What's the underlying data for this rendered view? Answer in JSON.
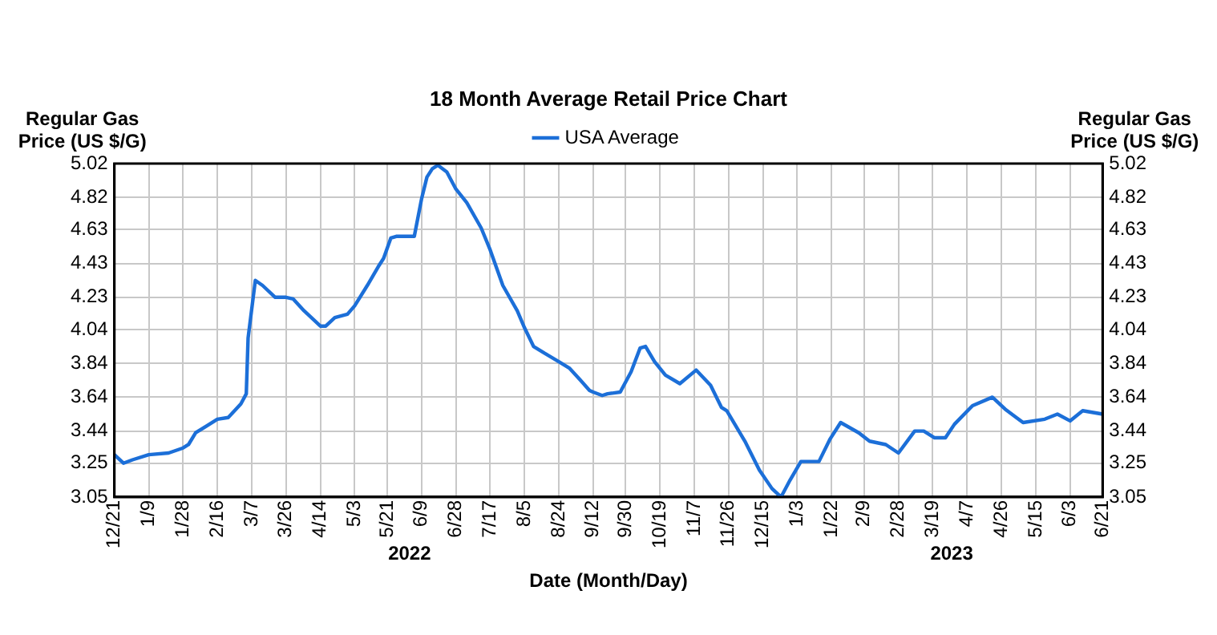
{
  "chart_data": {
    "type": "line",
    "title": "18 Month Average Retail Price Chart",
    "xlabel": "Date (Month/Day)",
    "ylabel": "Regular Gas Price (US $/G)",
    "y2label": "Regular Gas Price (US $/G)",
    "annotations": [
      "2022",
      "2023"
    ],
    "x": [
      "2021-12-21",
      "2021-12-26",
      "2021-12-31",
      "2022-01-09",
      "2022-01-20",
      "2022-01-28",
      "2022-01-31",
      "2022-02-04",
      "2022-02-16",
      "2022-02-22",
      "2022-03-01",
      "2022-03-04",
      "2022-03-05",
      "2022-03-09",
      "2022-03-13",
      "2022-03-20",
      "2022-03-26",
      "2022-03-30",
      "2022-04-05",
      "2022-04-14",
      "2022-04-17",
      "2022-04-22",
      "2022-04-29",
      "2022-05-03",
      "2022-05-10",
      "2022-05-16",
      "2022-05-19",
      "2022-05-23",
      "2022-05-26",
      "2022-06-05",
      "2022-06-09",
      "2022-06-12",
      "2022-06-15",
      "2022-06-18",
      "2022-06-23",
      "2022-06-28",
      "2022-07-04",
      "2022-07-12",
      "2022-07-17",
      "2022-07-24",
      "2022-08-01",
      "2022-08-05",
      "2022-08-10",
      "2022-08-16",
      "2022-08-24",
      "2022-08-30",
      "2022-09-05",
      "2022-09-10",
      "2022-09-12",
      "2022-09-17",
      "2022-09-20",
      "2022-09-27",
      "2022-10-03",
      "2022-10-08",
      "2022-10-11",
      "2022-10-16",
      "2022-10-22",
      "2022-10-30",
      "2022-11-08",
      "2022-11-16",
      "2022-11-22",
      "2022-11-25",
      "2022-12-05",
      "2022-12-13",
      "2022-12-20",
      "2022-12-25",
      "2022-12-30",
      "2023-01-05",
      "2023-01-15",
      "2023-01-21",
      "2023-01-27",
      "2023-02-06",
      "2023-02-12",
      "2023-02-21",
      "2023-02-28",
      "2023-03-09",
      "2023-03-14",
      "2023-03-20",
      "2023-03-26",
      "2023-03-31",
      "2023-04-10",
      "2023-04-21",
      "2023-04-28",
      "2023-05-08",
      "2023-05-20",
      "2023-05-27",
      "2023-06-03",
      "2023-06-10",
      "2023-06-21"
    ],
    "series": [
      {
        "name": "USA Average",
        "color": "#1c6fd8",
        "values": [
          3.3,
          3.25,
          3.27,
          3.3,
          3.31,
          3.34,
          3.36,
          3.43,
          3.51,
          3.52,
          3.6,
          3.66,
          3.99,
          4.33,
          4.3,
          4.23,
          4.23,
          4.22,
          4.15,
          4.06,
          4.06,
          4.11,
          4.13,
          4.18,
          4.3,
          4.41,
          4.46,
          4.58,
          4.59,
          4.59,
          4.81,
          4.94,
          4.99,
          5.01,
          4.97,
          4.87,
          4.79,
          4.64,
          4.51,
          4.3,
          4.15,
          4.05,
          3.94,
          3.9,
          3.85,
          3.81,
          3.74,
          3.68,
          3.67,
          3.65,
          3.66,
          3.67,
          3.79,
          3.93,
          3.94,
          3.85,
          3.77,
          3.72,
          3.8,
          3.71,
          3.58,
          3.56,
          3.38,
          3.21,
          3.1,
          3.05,
          3.15,
          3.26,
          3.26,
          3.39,
          3.49,
          3.43,
          3.38,
          3.36,
          3.31,
          3.44,
          3.44,
          3.4,
          3.4,
          3.48,
          3.59,
          3.64,
          3.57,
          3.49,
          3.51,
          3.54,
          3.5,
          3.56,
          3.54
        ]
      }
    ],
    "xlim": [
      "2021-12-21",
      "2023-06-21"
    ],
    "xticks": [
      {
        "value": "2021-12-21",
        "label": "12/21"
      },
      {
        "value": "2022-01-09",
        "label": "1/9"
      },
      {
        "value": "2022-01-28",
        "label": "1/28"
      },
      {
        "value": "2022-02-16",
        "label": "2/16"
      },
      {
        "value": "2022-03-07",
        "label": "3/7"
      },
      {
        "value": "2022-03-26",
        "label": "3/26"
      },
      {
        "value": "2022-04-14",
        "label": "4/14"
      },
      {
        "value": "2022-05-03",
        "label": "5/3"
      },
      {
        "value": "2022-05-21",
        "label": "5/21"
      },
      {
        "value": "2022-06-09",
        "label": "6/9"
      },
      {
        "value": "2022-06-28",
        "label": "6/28"
      },
      {
        "value": "2022-07-17",
        "label": "7/17"
      },
      {
        "value": "2022-08-05",
        "label": "8/5"
      },
      {
        "value": "2022-08-24",
        "label": "8/24"
      },
      {
        "value": "2022-09-12",
        "label": "9/12"
      },
      {
        "value": "2022-09-30",
        "label": "9/30"
      },
      {
        "value": "2022-10-19",
        "label": "10/19"
      },
      {
        "value": "2022-11-07",
        "label": "11/7"
      },
      {
        "value": "2022-11-26",
        "label": "11/26"
      },
      {
        "value": "2022-12-15",
        "label": "12/15"
      },
      {
        "value": "2023-01-03",
        "label": "1/3"
      },
      {
        "value": "2023-01-22",
        "label": "1/22"
      },
      {
        "value": "2023-02-09",
        "label": "2/9"
      },
      {
        "value": "2023-02-28",
        "label": "2/28"
      },
      {
        "value": "2023-03-19",
        "label": "3/19"
      },
      {
        "value": "2023-04-07",
        "label": "4/7"
      },
      {
        "value": "2023-04-26",
        "label": "4/26"
      },
      {
        "value": "2023-05-15",
        "label": "5/15"
      },
      {
        "value": "2023-06-03",
        "label": "6/3"
      },
      {
        "value": "2023-06-21",
        "label": "6/21"
      }
    ],
    "ylim": [
      3.05,
      5.02
    ],
    "yticks": [
      3.05,
      3.25,
      3.44,
      3.64,
      3.84,
      4.04,
      4.23,
      4.43,
      4.63,
      4.82,
      5.02
    ],
    "y2lim": [
      3.05,
      5.02
    ],
    "y2ticks": [
      3.05,
      3.25,
      3.44,
      3.64,
      3.84,
      4.04,
      4.23,
      4.43,
      4.63,
      4.82,
      5.02
    ],
    "grid": true,
    "legend": "top",
    "marker": "none",
    "line_style": "solid"
  }
}
